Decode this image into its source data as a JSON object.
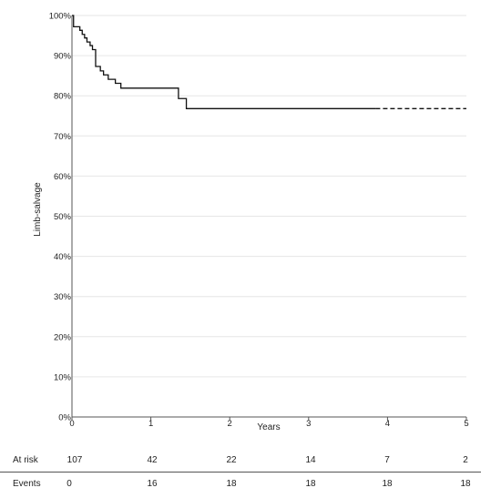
{
  "chart_data": {
    "type": "line",
    "ylabel": "Limb-salvage",
    "xlabel": "Years",
    "xlim": [
      0,
      5
    ],
    "ylim": [
      0,
      100
    ],
    "x_ticks": [
      "0",
      "1",
      "2",
      "3",
      "4",
      "5"
    ],
    "y_ticks": [
      "0%",
      "10%",
      "20%",
      "30%",
      "40%",
      "50%",
      "60%",
      "70%",
      "80%",
      "90%",
      "100%"
    ],
    "grid": true,
    "series": [
      {
        "step": true,
        "points": [
          [
            0,
            100
          ],
          [
            0.02,
            97.2
          ],
          [
            0.1,
            96.3
          ],
          [
            0.13,
            95.3
          ],
          [
            0.16,
            94.4
          ],
          [
            0.19,
            93.4
          ],
          [
            0.23,
            92.5
          ],
          [
            0.26,
            91.5
          ],
          [
            0.3,
            88.6
          ],
          [
            0.3,
            87.3
          ],
          [
            0.36,
            86.2
          ],
          [
            0.4,
            85.2
          ],
          [
            0.46,
            84.1
          ],
          [
            0.55,
            83.1
          ],
          [
            0.62,
            81.9
          ],
          [
            1.35,
            79.3
          ],
          [
            1.45,
            76.8
          ],
          [
            3.85,
            76.8
          ]
        ],
        "extension": [
          [
            3.85,
            76.8
          ],
          [
            5,
            76.8
          ]
        ]
      }
    ],
    "risk_table": {
      "rows": [
        {
          "label": "At risk",
          "values": [
            "107",
            "42",
            "22",
            "14",
            "7",
            "2"
          ]
        },
        {
          "label": "Events",
          "values": [
            "0",
            "16",
            "18",
            "18",
            "18",
            "18"
          ]
        }
      ]
    }
  }
}
